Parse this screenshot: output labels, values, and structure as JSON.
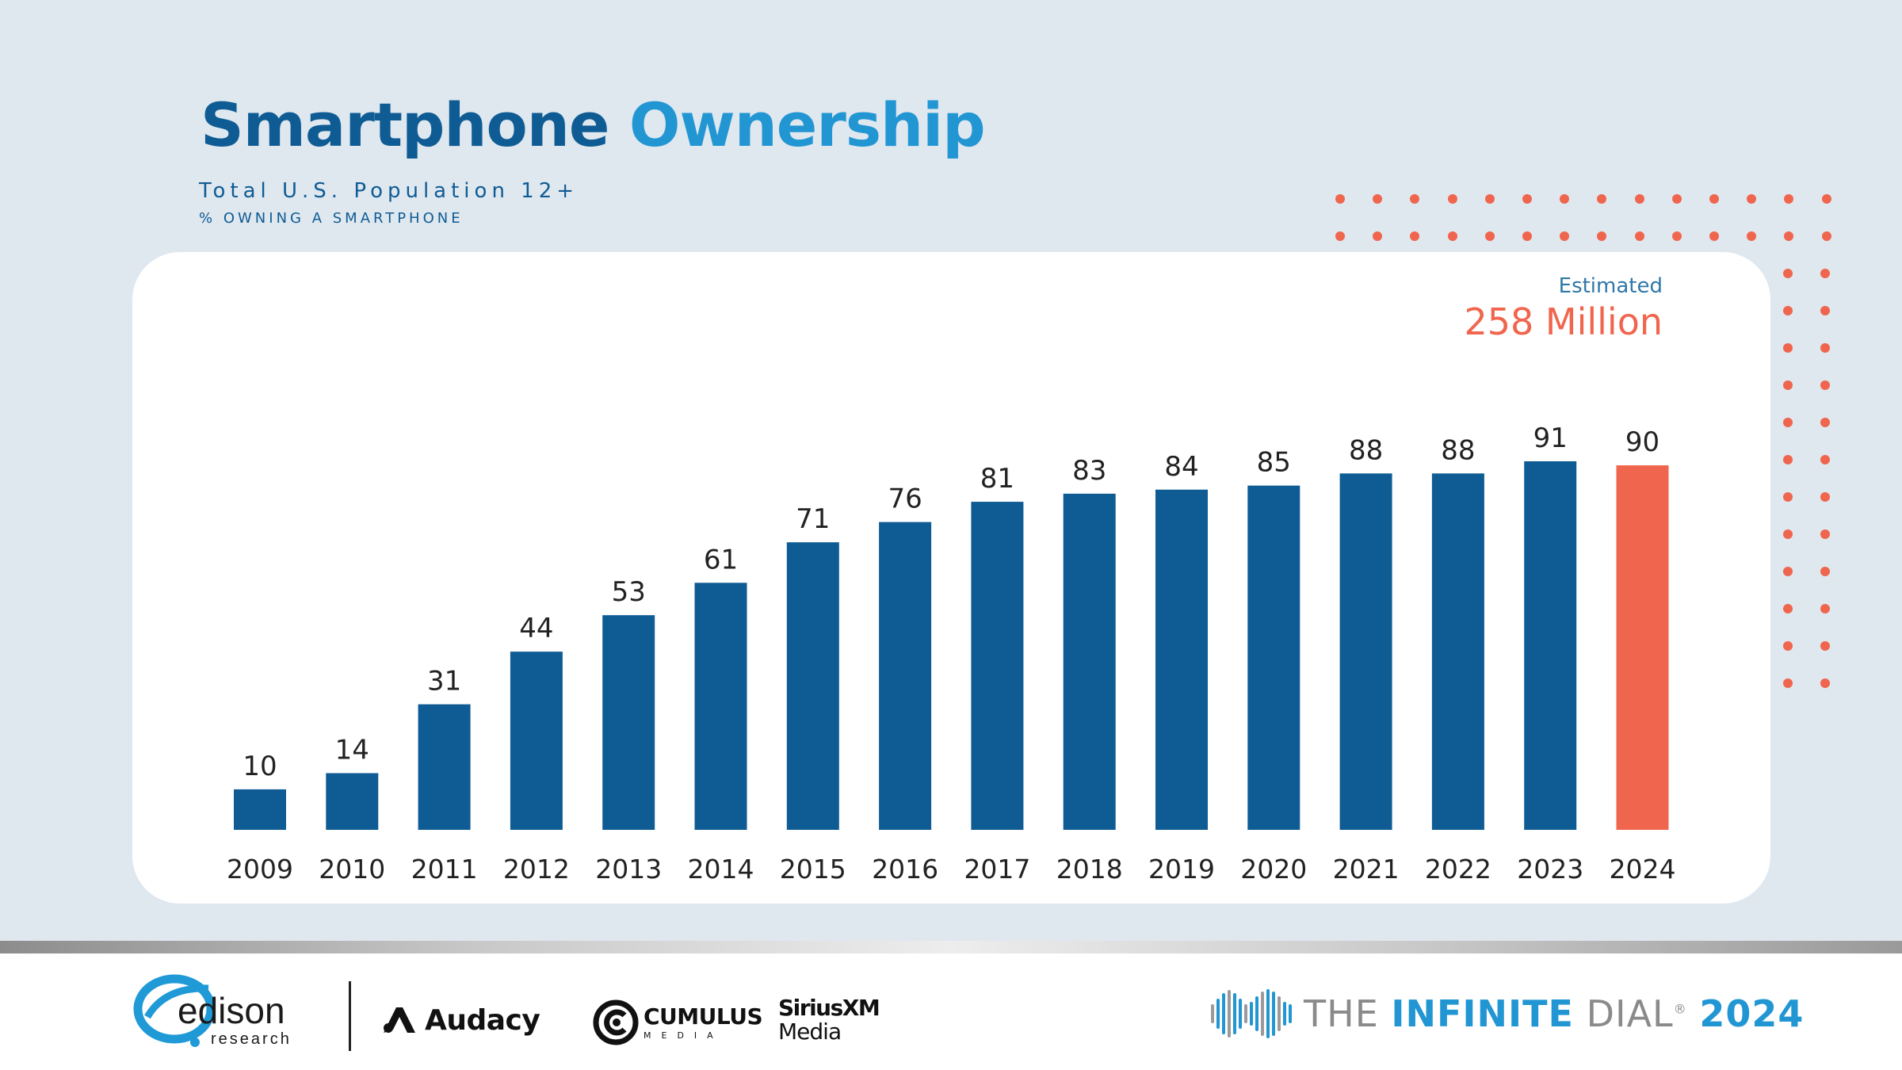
{
  "header": {
    "title_part1": "Smartphone",
    "title_part2": "Ownership",
    "subtitle": "Total U.S. Population 12+",
    "subtitle2": "% OWNING A SMARTPHONE"
  },
  "estimate": {
    "label": "Estimated",
    "value": "258 Million"
  },
  "colors": {
    "background": "#dfe7ef",
    "bar": "#0f5c94",
    "highlight_bar": "#f0654d",
    "accent": "#2196d3"
  },
  "chart_data": {
    "type": "bar",
    "categories": [
      "2009",
      "2010",
      "2011",
      "2012",
      "2013",
      "2014",
      "2015",
      "2016",
      "2017",
      "2018",
      "2019",
      "2020",
      "2021",
      "2022",
      "2023",
      "2024"
    ],
    "values": [
      10,
      14,
      31,
      44,
      53,
      61,
      71,
      76,
      81,
      83,
      84,
      85,
      88,
      88,
      91,
      90
    ],
    "highlight_category": "2024",
    "ylim": [
      0,
      100
    ],
    "grid": false,
    "data_labels": true,
    "title": "Smartphone Ownership",
    "subtitle": "Total U.S. Population 12+",
    "ylabel": "% OWNING A SMARTPHONE"
  },
  "footer": {
    "logos": [
      {
        "name": "edison",
        "text": "edison",
        "subtext": "research"
      },
      {
        "name": "audacy",
        "text": "Audacy"
      },
      {
        "name": "cumulus",
        "text": "CUMULUS",
        "subtext": "MEDIA"
      },
      {
        "name": "siriusxm",
        "text": "SiriusXM",
        "subtext": "Media"
      }
    ],
    "brand": {
      "the": "THE",
      "infinite": "INFINITE",
      "dial": "DIAL",
      "registered": "®",
      "year": "2024"
    }
  }
}
